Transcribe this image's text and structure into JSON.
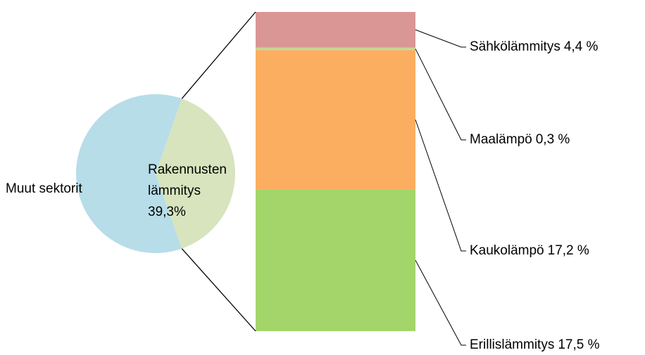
{
  "chart_data": {
    "type": "bar-of-pie",
    "pie": {
      "categories": [
        "Muut sektorit",
        "Rakennusten lämmitys"
      ],
      "values": [
        60.7,
        39.3
      ],
      "value_labels": [
        null,
        "39,3%"
      ],
      "colors": [
        "#b7dde8",
        "#d7e4bd"
      ]
    },
    "bar": {
      "categories": [
        "Erillislämmitys",
        "Kaukolämpö",
        "Maalämpö",
        "Sähkölämmitys"
      ],
      "values": [
        17.5,
        17.2,
        0.3,
        4.4
      ],
      "value_labels": [
        "17,5 %",
        "17,2 %",
        "0,3 %",
        "4,4 %"
      ],
      "colors": [
        "#a3d56b",
        "#fbae5f",
        "#c3d69b",
        "#d99694"
      ]
    }
  }
}
